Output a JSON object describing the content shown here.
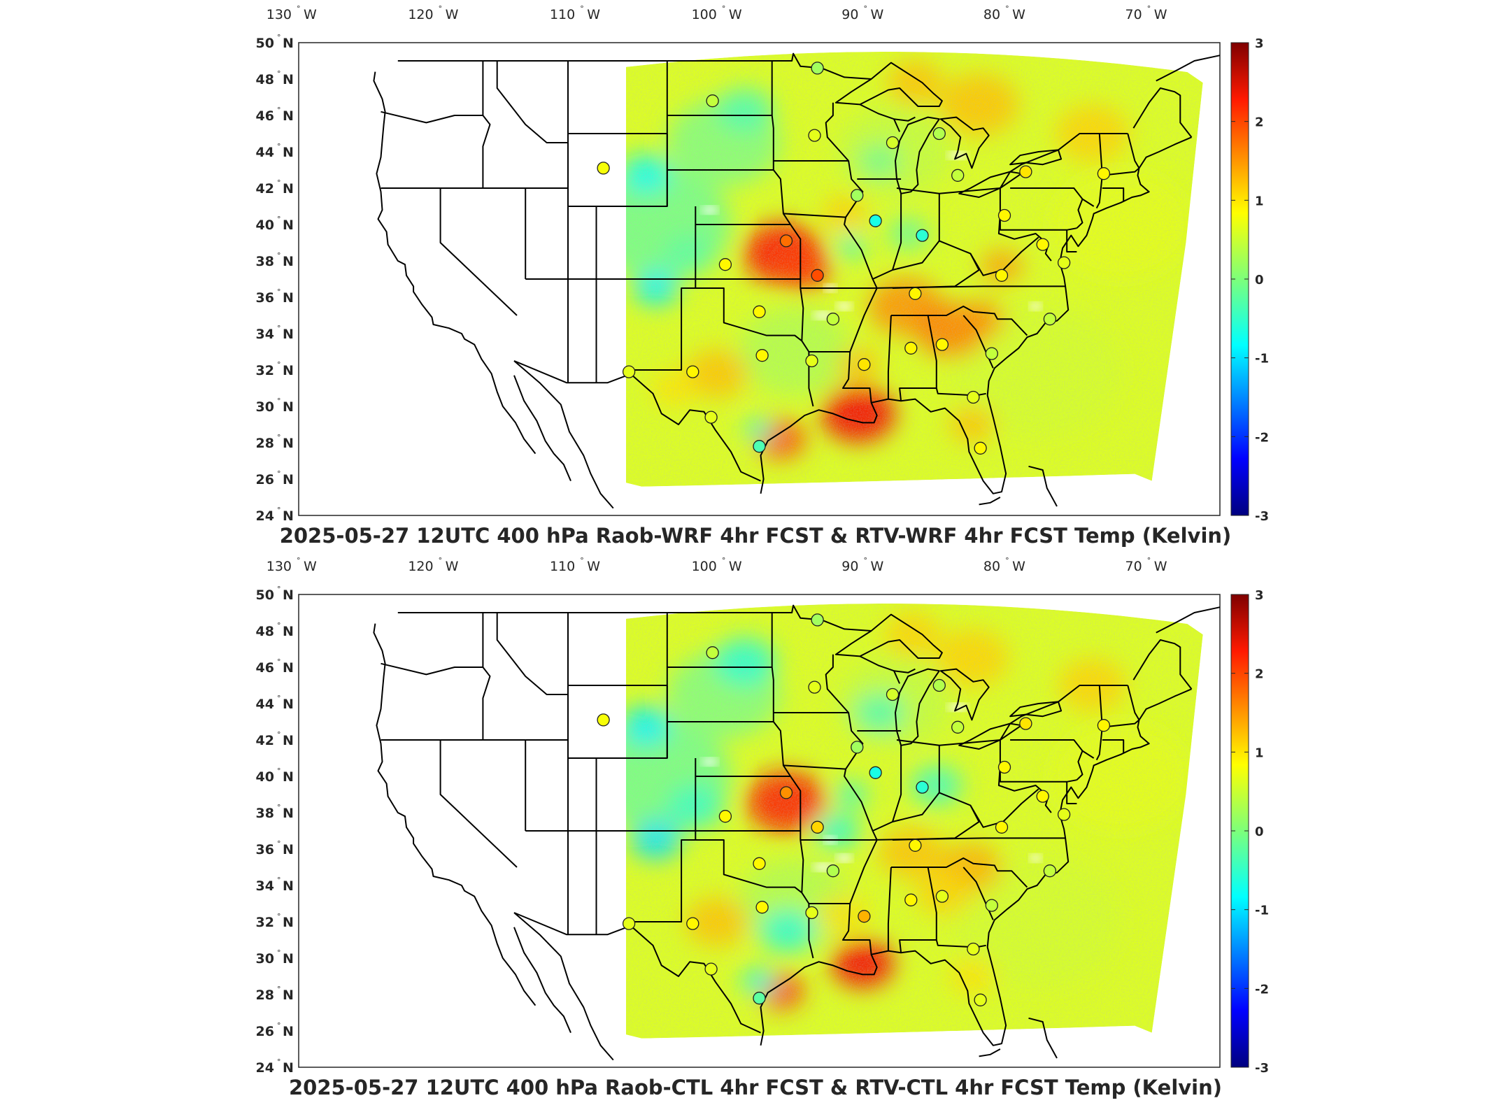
{
  "panels": [
    {
      "title": "2025-05-27 12UTC 400 hPa Raob-WRF 4hr FCST & RTV-WRF 4hr FCST Temp (Kelvin)",
      "pattern": "wrf"
    },
    {
      "title": "2025-05-27 12UTC 400 hPa Raob-CTL 4hr FCST & RTV-CTL 4hr FCST Temp (Kelvin)",
      "pattern": "ctl"
    }
  ],
  "axes": {
    "lon_ticks": [
      {
        "value": -130,
        "num": "130",
        "hemi": "W"
      },
      {
        "value": -120,
        "num": "120",
        "hemi": "W"
      },
      {
        "value": -110,
        "num": "110",
        "hemi": "W"
      },
      {
        "value": -100,
        "num": "100",
        "hemi": "W"
      },
      {
        "value": -90,
        "num": "90",
        "hemi": "W"
      },
      {
        "value": -80,
        "num": "80",
        "hemi": "W"
      },
      {
        "value": -70,
        "num": "70",
        "hemi": "W"
      }
    ],
    "lat_ticks": [
      {
        "value": 50,
        "num": "50",
        "hemi": "N"
      },
      {
        "value": 48,
        "num": "48",
        "hemi": "N"
      },
      {
        "value": 46,
        "num": "46",
        "hemi": "N"
      },
      {
        "value": 44,
        "num": "44",
        "hemi": "N"
      },
      {
        "value": 42,
        "num": "42",
        "hemi": "N"
      },
      {
        "value": 40,
        "num": "40",
        "hemi": "N"
      },
      {
        "value": 38,
        "num": "38",
        "hemi": "N"
      },
      {
        "value": 36,
        "num": "36",
        "hemi": "N"
      },
      {
        "value": 34,
        "num": "34",
        "hemi": "N"
      },
      {
        "value": 32,
        "num": "32",
        "hemi": "N"
      },
      {
        "value": 30,
        "num": "30",
        "hemi": "N"
      },
      {
        "value": 28,
        "num": "28",
        "hemi": "N"
      },
      {
        "value": 26,
        "num": "26",
        "hemi": "N"
      },
      {
        "value": 24,
        "num": "24",
        "hemi": "N"
      }
    ],
    "degree_symbol": "°"
  },
  "colorbar": {
    "min": -3,
    "max": 3,
    "colormap": "jet",
    "ticks": [
      {
        "value": 3,
        "label": "3"
      },
      {
        "value": 2,
        "label": "2"
      },
      {
        "value": 1,
        "label": "1"
      },
      {
        "value": 0,
        "label": "0"
      },
      {
        "value": -1,
        "label": "-1"
      },
      {
        "value": -2,
        "label": "-2"
      },
      {
        "value": -3,
        "label": "-3"
      }
    ]
  },
  "raob_stations": [
    {
      "lon": -108.5,
      "lat": 43.1,
      "v_wrf": 0.7,
      "v_ctl": 0.7
    },
    {
      "lon": -100.8,
      "lat": 46.8,
      "v_wrf": 0.4,
      "v_ctl": 0.4
    },
    {
      "lon": -93.4,
      "lat": 48.6,
      "v_wrf": 0.2,
      "v_ctl": 0.2
    },
    {
      "lon": -93.6,
      "lat": 44.9,
      "v_wrf": 0.6,
      "v_ctl": 0.6
    },
    {
      "lon": -88.1,
      "lat": 44.5,
      "v_wrf": 0.5,
      "v_ctl": 0.5
    },
    {
      "lon": -84.8,
      "lat": 45.0,
      "v_wrf": 0.3,
      "v_ctl": 0.3
    },
    {
      "lon": -83.5,
      "lat": 42.7,
      "v_wrf": 0.4,
      "v_ctl": 0.4
    },
    {
      "lon": -78.7,
      "lat": 42.9,
      "v_wrf": 0.9,
      "v_ctl": 0.9
    },
    {
      "lon": -73.2,
      "lat": 42.8,
      "v_wrf": 0.8,
      "v_ctl": 0.8
    },
    {
      "lon": -90.6,
      "lat": 41.6,
      "v_wrf": 0.2,
      "v_ctl": 0.2
    },
    {
      "lon": -89.3,
      "lat": 40.2,
      "v_wrf": -0.6,
      "v_ctl": -0.6
    },
    {
      "lon": -86.0,
      "lat": 39.4,
      "v_wrf": -0.5,
      "v_ctl": -0.5
    },
    {
      "lon": -80.2,
      "lat": 40.5,
      "v_wrf": 0.8,
      "v_ctl": 0.8
    },
    {
      "lon": -95.6,
      "lat": 39.1,
      "v_wrf": 1.6,
      "v_ctl": 1.4
    },
    {
      "lon": -93.4,
      "lat": 37.2,
      "v_wrf": 1.8,
      "v_ctl": 1.0
    },
    {
      "lon": -99.9,
      "lat": 37.8,
      "v_wrf": 0.8,
      "v_ctl": 0.8
    },
    {
      "lon": -86.5,
      "lat": 36.2,
      "v_wrf": 0.8,
      "v_ctl": 0.8
    },
    {
      "lon": -80.4,
      "lat": 37.2,
      "v_wrf": 0.8,
      "v_ctl": 0.8
    },
    {
      "lon": -97.5,
      "lat": 35.2,
      "v_wrf": 0.8,
      "v_ctl": 0.8
    },
    {
      "lon": -92.3,
      "lat": 34.8,
      "v_wrf": 0.4,
      "v_ctl": 0.3
    },
    {
      "lon": -86.8,
      "lat": 33.2,
      "v_wrf": 0.8,
      "v_ctl": 0.8
    },
    {
      "lon": -84.6,
      "lat": 33.4,
      "v_wrf": 0.8,
      "v_ctl": 0.6
    },
    {
      "lon": -97.3,
      "lat": 32.8,
      "v_wrf": 0.8,
      "v_ctl": 0.8
    },
    {
      "lon": -93.8,
      "lat": 32.5,
      "v_wrf": 0.6,
      "v_ctl": 0.6
    },
    {
      "lon": -90.1,
      "lat": 32.3,
      "v_wrf": 0.9,
      "v_ctl": 1.2
    },
    {
      "lon": -102.2,
      "lat": 31.9,
      "v_wrf": 0.8,
      "v_ctl": 0.8
    },
    {
      "lon": -106.7,
      "lat": 31.9,
      "v_wrf": 0.6,
      "v_ctl": 0.6
    },
    {
      "lon": -81.1,
      "lat": 32.9,
      "v_wrf": 0.4,
      "v_ctl": 0.4
    },
    {
      "lon": -77.0,
      "lat": 34.8,
      "v_wrf": 0.4,
      "v_ctl": 0.4
    },
    {
      "lon": -100.9,
      "lat": 29.4,
      "v_wrf": 0.6,
      "v_ctl": 0.6
    },
    {
      "lon": -97.5,
      "lat": 27.8,
      "v_wrf": -0.3,
      "v_ctl": -0.2
    },
    {
      "lon": -82.4,
      "lat": 30.5,
      "v_wrf": 0.6,
      "v_ctl": 0.6
    },
    {
      "lon": -81.9,
      "lat": 27.7,
      "v_wrf": 0.8,
      "v_ctl": 0.6
    },
    {
      "lon": -77.5,
      "lat": 38.9,
      "v_wrf": 0.8,
      "v_ctl": 0.8
    },
    {
      "lon": -76.0,
      "lat": 37.9,
      "v_wrf": 0.6,
      "v_ctl": 0.6
    }
  ]
}
